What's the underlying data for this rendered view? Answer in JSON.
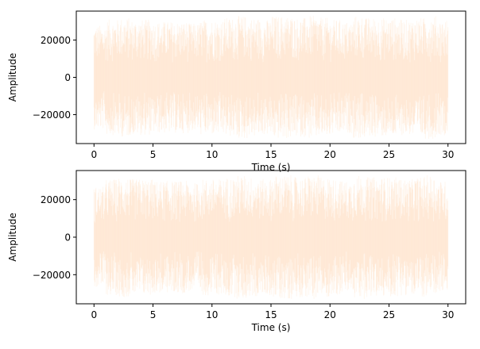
{
  "chart_data": [
    {
      "type": "line",
      "xlabel": "Time (s)",
      "ylabel": "Amplitude",
      "xlim": [
        -1.5,
        31.5
      ],
      "ylim": [
        -35500,
        35500
      ],
      "xticks": [
        "0",
        "5",
        "10",
        "15",
        "20",
        "25",
        "30"
      ],
      "xtick_values": [
        0,
        5,
        10,
        15,
        20,
        25,
        30
      ],
      "yticks": [
        "−20000",
        "0",
        "20000"
      ],
      "ytick_values": [
        -20000,
        0,
        20000
      ],
      "grid": false,
      "color": "#ff7f0e",
      "x_range": [
        0,
        30
      ],
      "peak_envelope_per_second": [
        28000,
        31000,
        32000,
        31000,
        31000,
        30000,
        30000,
        30000,
        29000,
        31000,
        31000,
        32000,
        33000,
        32000,
        31000,
        33000,
        33000,
        32000,
        33000,
        32000,
        31000,
        30000,
        33000,
        32000,
        32000,
        32000,
        31000,
        32000,
        33000,
        31000
      ]
    },
    {
      "type": "line",
      "xlabel": "Time (s)",
      "ylabel": "Amplitude",
      "xlim": [
        -1.5,
        31.5
      ],
      "ylim": [
        -35500,
        35500
      ],
      "xticks": [
        "0",
        "5",
        "10",
        "15",
        "20",
        "25",
        "30"
      ],
      "xtick_values": [
        0,
        5,
        10,
        15,
        20,
        25,
        30
      ],
      "yticks": [
        "−20000",
        "0",
        "20000"
      ],
      "ytick_values": [
        -20000,
        0,
        20000
      ],
      "grid": false,
      "color": "#ff7f0e",
      "x_range": [
        0,
        30
      ],
      "peak_envelope_per_second": [
        27000,
        31000,
        32000,
        31000,
        31000,
        30000,
        30000,
        30000,
        29000,
        31000,
        31000,
        32000,
        33000,
        32000,
        31000,
        33000,
        33000,
        32000,
        33000,
        32000,
        31000,
        30000,
        33000,
        32000,
        32000,
        32000,
        31000,
        32000,
        33000,
        30000
      ]
    }
  ]
}
